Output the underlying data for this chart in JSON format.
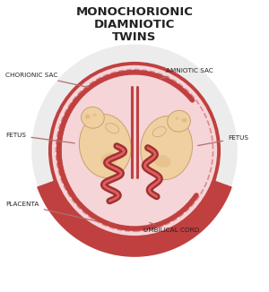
{
  "title_line1": "MONOCHORIONIC",
  "title_line2": "DIAMNIOTIC",
  "title_line3": "TWINS",
  "title_fontsize": 9.5,
  "label_fontsize": 5.2,
  "bg_color": "#ffffff",
  "gray_outer_color": "#dedede",
  "chorionic_border_color": "#c04040",
  "amniotic_fill_color": "#f5d5d8",
  "placenta_color": "#c04040",
  "fetus_skin": "#f0d0a0",
  "fetus_edge": "#c8a070",
  "fetus_shadow": "#ddb880",
  "membrane_color": "#c04040",
  "vessel_color": "#c04040",
  "cord_dark": "#a03030",
  "cord_light": "#e06060",
  "label_color": "#222222",
  "anno_line_color": "#b07070"
}
